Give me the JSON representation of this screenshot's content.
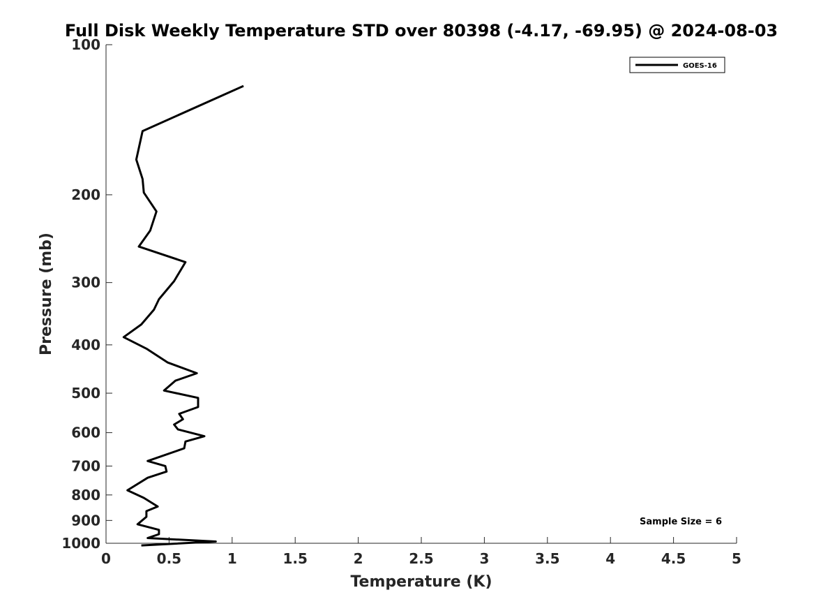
{
  "chart_data": {
    "type": "line",
    "title": "Full Disk Weekly Temperature STD over 80398 (-4.17, -69.95) @ 2024-08-03",
    "xlabel": "Temperature (K)",
    "ylabel": "Pressure (mb)",
    "xlim": [
      0,
      5
    ],
    "ylim": [
      100,
      1000
    ],
    "yscale": "log",
    "reversed_y": true,
    "x_ticks": [
      0,
      0.5,
      1,
      1.5,
      2,
      2.5,
      3,
      3.5,
      4,
      4.5,
      5
    ],
    "x_tick_labels": [
      "0",
      "0.5",
      "1",
      "1.5",
      "2",
      "2.5",
      "3",
      "3.5",
      "4",
      "4.5",
      "5"
    ],
    "y_ticks": [
      100,
      200,
      300,
      400,
      500,
      600,
      700,
      800,
      900,
      1000
    ],
    "y_tick_labels": [
      "100",
      "200",
      "300",
      "400",
      "500",
      "600",
      "700",
      "800",
      "900",
      "1000"
    ],
    "legend": {
      "position": "top-right",
      "entries": [
        "GOES-16"
      ]
    },
    "annotation": "Sample Size = 6",
    "series": [
      {
        "name": "GOES-16",
        "color": "#000000",
        "x": [
          1.09,
          0.29,
          0.24,
          0.29,
          0.3,
          0.4,
          0.35,
          0.26,
          0.63,
          0.54,
          0.42,
          0.38,
          0.28,
          0.14,
          0.32,
          0.49,
          0.72,
          0.55,
          0.46,
          0.73,
          0.73,
          0.58,
          0.61,
          0.54,
          0.57,
          0.78,
          0.63,
          0.62,
          0.33,
          0.47,
          0.48,
          0.33,
          0.17,
          0.3,
          0.41,
          0.32,
          0.32,
          0.25,
          0.42,
          0.42,
          0.33,
          0.87,
          0.28
        ],
        "y": [
          121,
          149,
          170,
          186,
          198,
          216,
          236,
          254,
          273,
          298,
          324,
          340,
          364,
          386,
          407,
          434,
          456,
          472,
          494,
          511,
          533,
          550,
          564,
          578,
          591,
          610,
          625,
          645,
          684,
          700,
          718,
          739,
          783,
          811,
          844,
          862,
          885,
          916,
          940,
          959,
          976,
          992,
          1010
        ]
      }
    ]
  }
}
